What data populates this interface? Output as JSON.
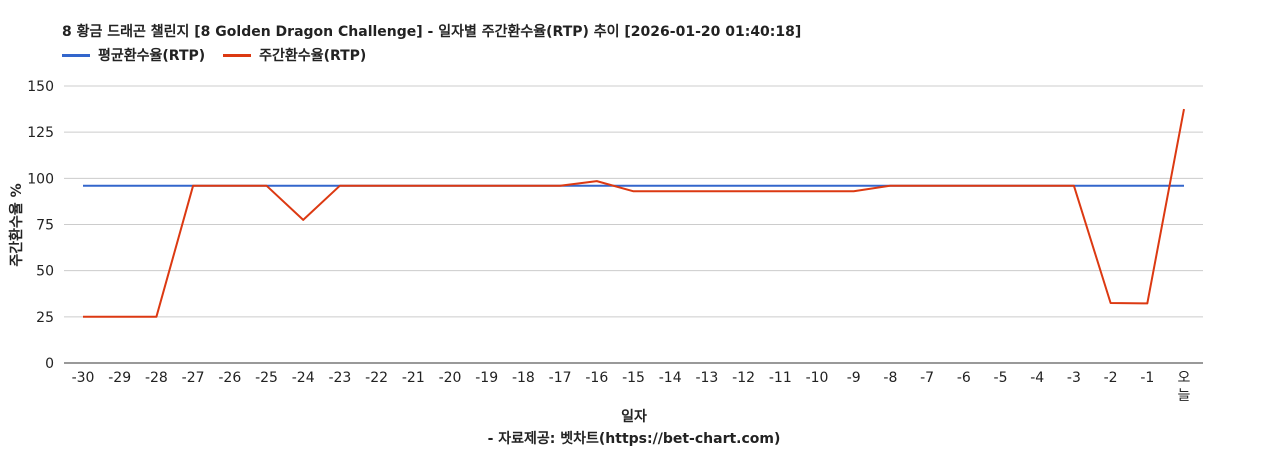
{
  "chart_data": {
    "type": "line",
    "title": "8 황금 드래곤 챌린지 [8 Golden Dragon Challenge] - 일자별 주간환수율(RTP) 추이 [2026-01-20 01:40:18]",
    "xlabel": "일자",
    "ylabel": "주간환수율 %",
    "credit": "- 자료제공: 벳차트(https://bet-chart.com)",
    "categories": [
      "-30",
      "-29",
      "-28",
      "-27",
      "-26",
      "-25",
      "-24",
      "-23",
      "-22",
      "-21",
      "-20",
      "-19",
      "-18",
      "-17",
      "-16",
      "-15",
      "-14",
      "-13",
      "-12",
      "-11",
      "-10",
      "-9",
      "-8",
      "-7",
      "-6",
      "-5",
      "-4",
      "-3",
      "-2",
      "-1",
      "오늘"
    ],
    "series": [
      {
        "name": "평균환수율(RTP)",
        "color": "#3366cc",
        "values": [
          96,
          96,
          96,
          96,
          96,
          96,
          96,
          96,
          96,
          96,
          96,
          96,
          96,
          96,
          96,
          96,
          96,
          96,
          96,
          96,
          96,
          96,
          96,
          96,
          96,
          96,
          96,
          96,
          96,
          96,
          96
        ]
      },
      {
        "name": "주간환수율(RTP)",
        "color": "#dc3912",
        "values": [
          25,
          25,
          25,
          96,
          96,
          96,
          77.5,
          96,
          96,
          96,
          96,
          96,
          96,
          96,
          98.5,
          93,
          93,
          93,
          93,
          93,
          93,
          93,
          96,
          96,
          96,
          96,
          96,
          96,
          32.5,
          32.3,
          137.5
        ]
      }
    ],
    "yticks": [
      0,
      25,
      50,
      75,
      100,
      125,
      150
    ],
    "ylim": [
      0,
      150
    ],
    "grid": true,
    "legend_position": "top-left"
  }
}
